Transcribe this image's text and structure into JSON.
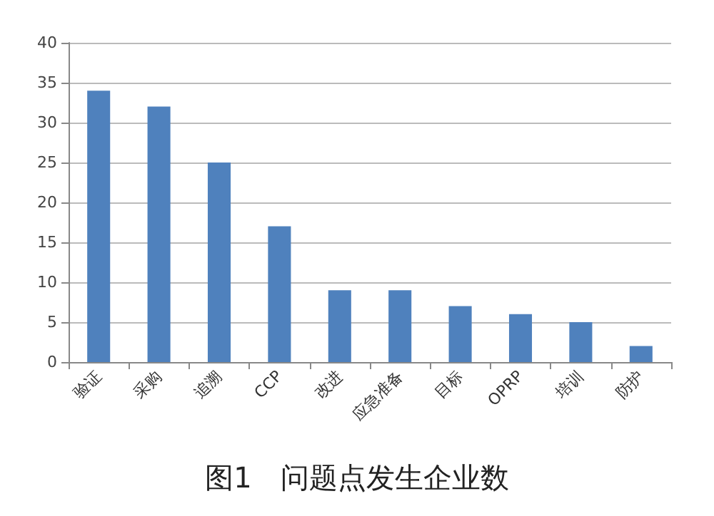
{
  "chart_data": {
    "type": "bar",
    "title": "图1　问题点发生企业数",
    "categories": [
      "验证",
      "采购",
      "追溯",
      "CCP",
      "改进",
      "应急准备",
      "目标",
      "OPRP",
      "培训",
      "防护"
    ],
    "values": [
      34,
      32,
      25,
      17,
      9,
      9,
      7,
      6,
      5,
      2
    ],
    "color": "#4f81bd",
    "ylim": [
      0,
      40
    ],
    "yticks": [
      0,
      5,
      10,
      15,
      20,
      25,
      30,
      35,
      40
    ],
    "grid": "y"
  }
}
